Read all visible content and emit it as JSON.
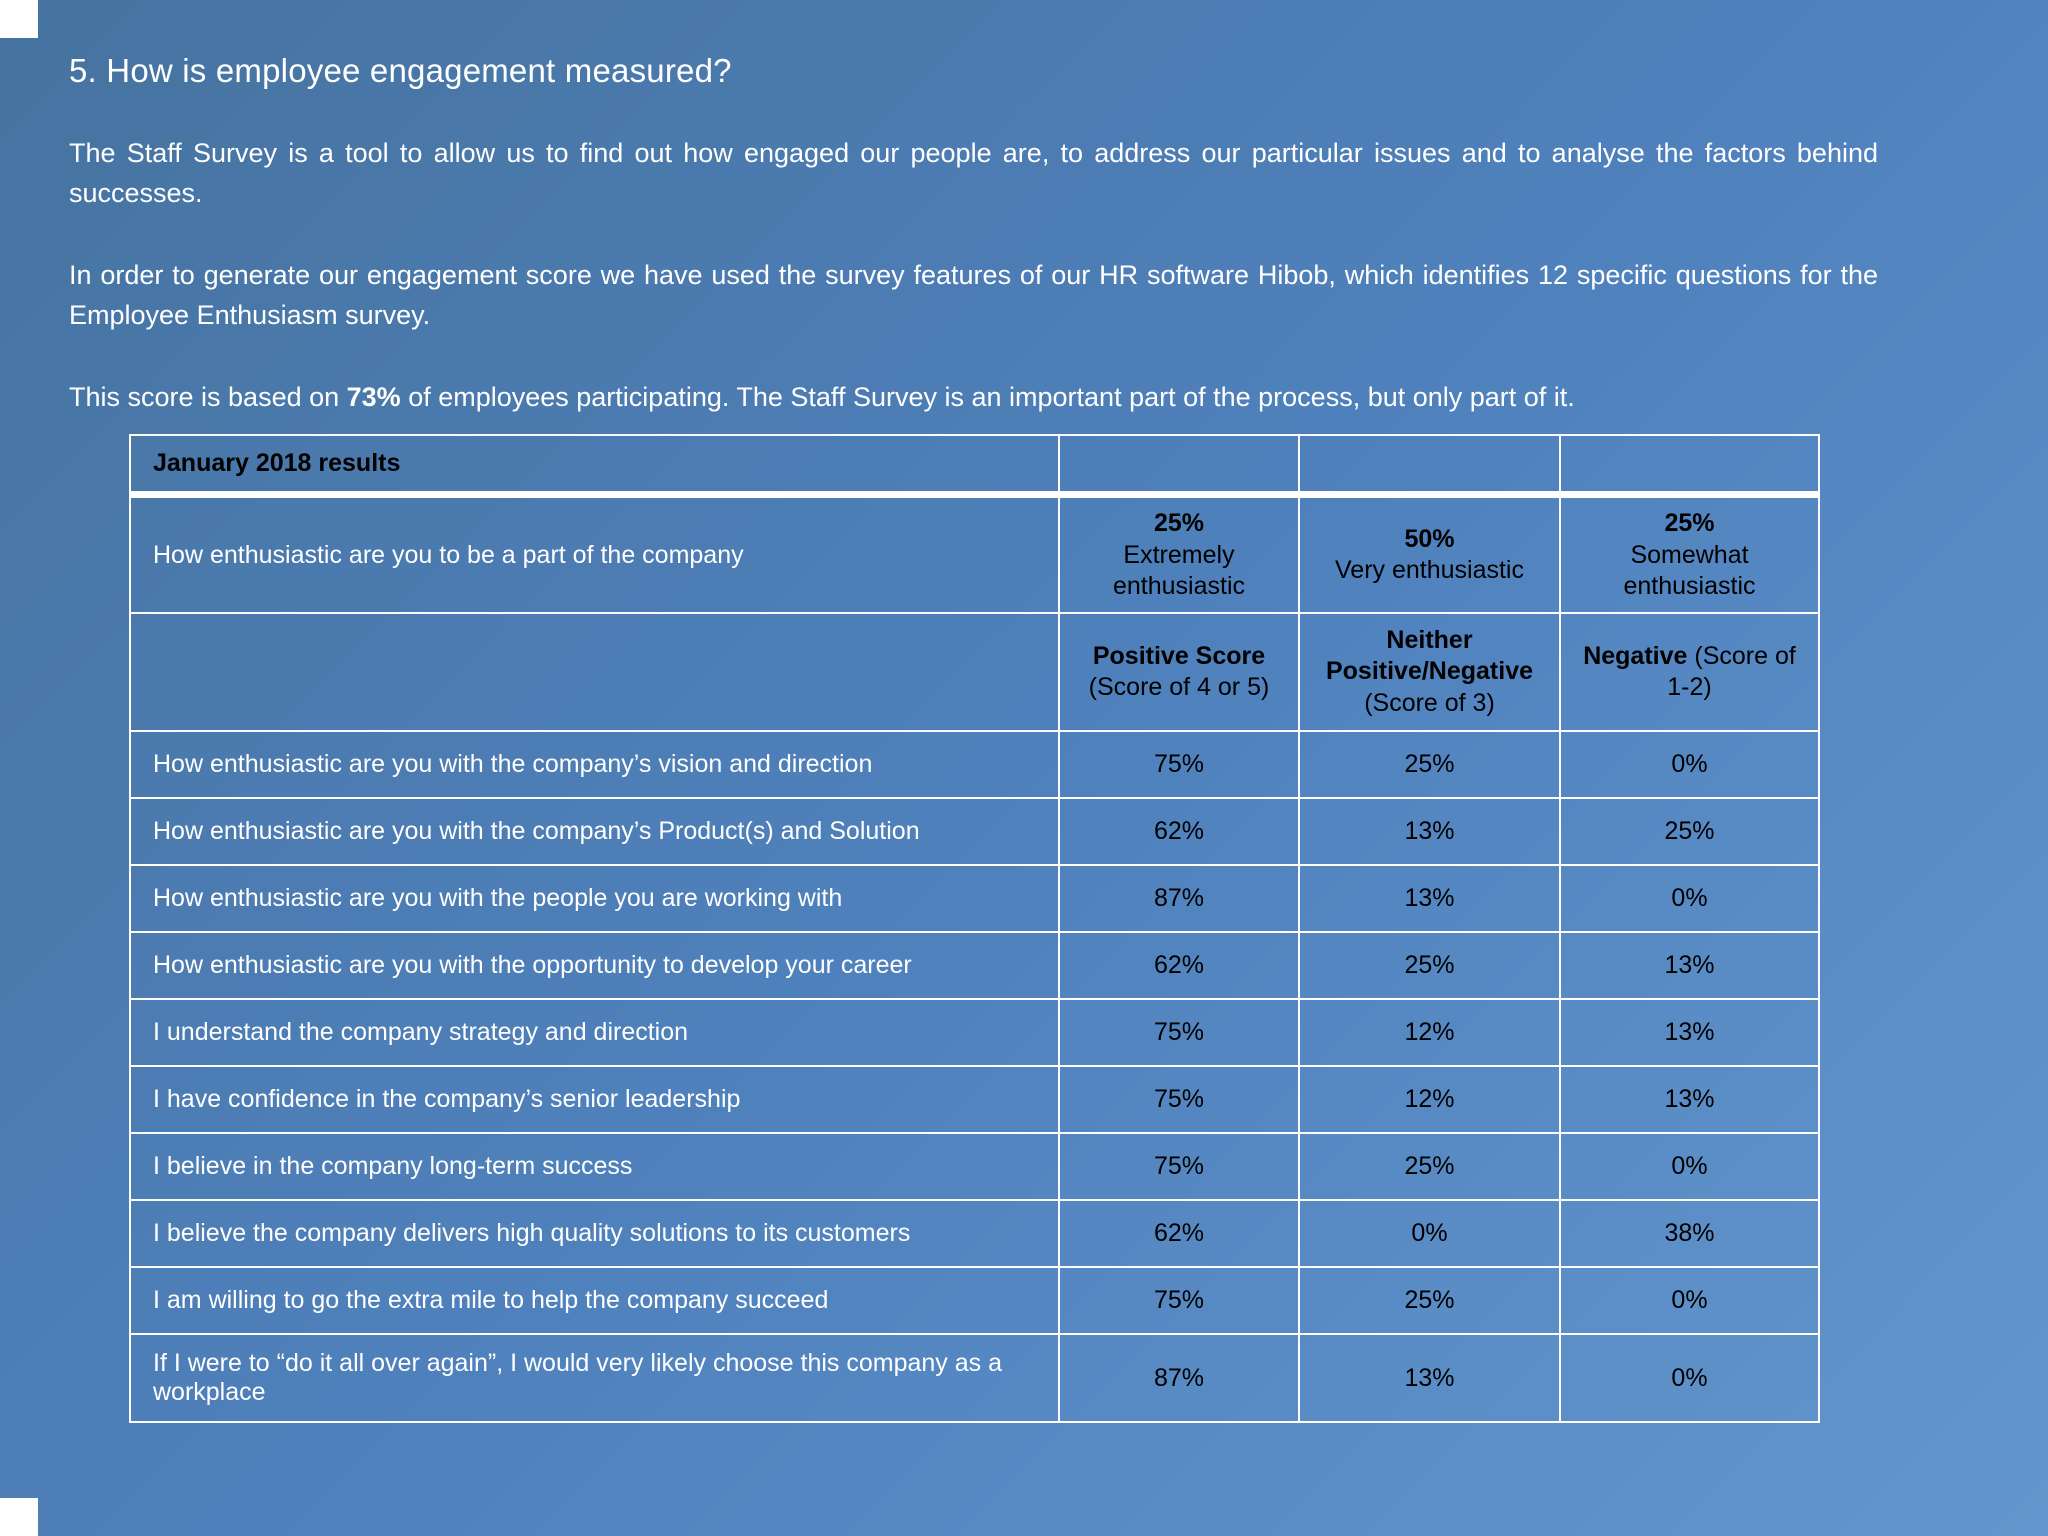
{
  "colors": {
    "background": "#4f81bd",
    "table_border": "#ffffff",
    "light_text": "#ffffff",
    "dark_text": "#000000"
  },
  "page": {
    "title": "5. How is employee engagement measured?",
    "paragraph1": "The Staff Survey is a tool to allow us to find out how engaged our people are, to address our particular issues and to analyse the factors behind successes.",
    "paragraph2": "In order to generate our engagement score we have used the survey features of our HR software Hibob, which identifies 12 specific questions for the Employee Enthusiasm survey.",
    "paragraph3_before": "This score is based on ",
    "paragraph3_bold": "73%",
    "paragraph3_after": " of employees participating.  The Staff Survey is an important part of the process, but only part of it."
  },
  "table": {
    "title": "January 2018 results",
    "enthusiasm_row": {
      "question": "How enthusiastic are you to be a part of the company",
      "cells": [
        {
          "value": "25%",
          "label": "Extremely enthusiastic"
        },
        {
          "value": "50%",
          "label": "Very enthusiastic"
        },
        {
          "value": "25%",
          "label": "Somewhat enthusiastic"
        }
      ]
    },
    "score_header": {
      "positive_bold": "Positive Score",
      "positive_rest": "(Score of 4 or 5)",
      "neither_bold": "Neither Positive/Negative",
      "neither_rest": "(Score of 3)",
      "negative_bold": "Negative",
      "negative_rest": " (Score of 1-2)"
    },
    "rows": [
      {
        "question": "How enthusiastic are you with the company’s vision and direction",
        "positive": "75%",
        "neither": "25%",
        "negative": "0%"
      },
      {
        "question": "How enthusiastic are you with the company’s Product(s) and Solution",
        "positive": "62%",
        "neither": "13%",
        "negative": "25%"
      },
      {
        "question": "How enthusiastic are you with the people you are working with",
        "positive": "87%",
        "neither": "13%",
        "negative": "0%"
      },
      {
        "question": "How enthusiastic are you with the opportunity to develop your career",
        "positive": "62%",
        "neither": "25%",
        "negative": "13%"
      },
      {
        "question": "I understand the company strategy and direction",
        "positive": "75%",
        "neither": "12%",
        "negative": "13%"
      },
      {
        "question": "I have confidence in the company’s senior leadership",
        "positive": "75%",
        "neither": "12%",
        "negative": "13%"
      },
      {
        "question": "I believe in the company long-term success",
        "positive": "75%",
        "neither": "25%",
        "negative": "0%"
      },
      {
        "question": "I believe the company delivers high quality solutions to its customers",
        "positive": "62%",
        "neither": "0%",
        "negative": "38%"
      },
      {
        "question": "I am willing to go the extra mile to help the company succeed",
        "positive": "75%",
        "neither": "25%",
        "negative": "0%"
      },
      {
        "question": "If I were to “do it all over again”, I would very likely choose this company as a workplace",
        "positive": "87%",
        "neither": "13%",
        "negative": "0%"
      }
    ]
  }
}
